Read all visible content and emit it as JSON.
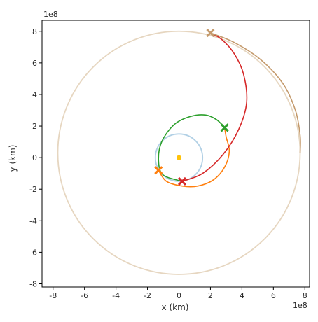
{
  "chart_data": {
    "type": "line",
    "title": "",
    "xlabel": "x (km)",
    "ylabel": "y (km)",
    "x_offset_label": "1e8",
    "y_offset_label": "1e8",
    "xlim": [
      -8.7,
      8.3
    ],
    "ylim": [
      -8.2,
      8.7
    ],
    "xticks": [
      -8,
      -6,
      -4,
      -2,
      0,
      2,
      4,
      6,
      8
    ],
    "yticks": [
      -8,
      -6,
      -4,
      -2,
      0,
      2,
      4,
      6,
      8
    ],
    "xtick_labels": [
      "-8",
      "-6",
      "-4",
      "-2",
      "0",
      "2",
      "4",
      "6",
      "8"
    ],
    "ytick_labels": [
      "-8",
      "-6",
      "-4",
      "-2",
      "0",
      "2",
      "4",
      "6",
      "8"
    ],
    "units_scale": "1e8",
    "grid": false,
    "aspect": "equal",
    "sun": {
      "x": 0,
      "y": 0,
      "color": "#ffc20a"
    },
    "orbits": [
      {
        "id": "inner-orbit",
        "cx": 0,
        "cy": 0,
        "r": 1.5,
        "color": "#1f77b4",
        "opacity": 0.35
      },
      {
        "id": "outer-orbit",
        "cx": 0,
        "cy": 0.3,
        "r": 7.7,
        "color": "#d2b48c",
        "opacity": 0.55
      }
    ],
    "series": [
      {
        "color": "#ff7f0e",
        "points": [
          [
            -1.3,
            -0.8
          ],
          [
            -0.8,
            -1.5
          ],
          [
            0.2,
            -1.8
          ],
          [
            1.2,
            -1.8
          ],
          [
            2.2,
            -1.4
          ],
          [
            2.9,
            -0.6
          ],
          [
            3.2,
            0.4
          ],
          [
            3.0,
            1.3
          ],
          [
            2.9,
            1.9
          ]
        ],
        "marker": [
          -1.3,
          -0.8
        ]
      },
      {
        "color": "#2ca02c",
        "points": [
          [
            0.2,
            -1.5
          ],
          [
            -1.0,
            -1.1
          ],
          [
            -1.3,
            -0.2
          ],
          [
            -1.1,
            1.0
          ],
          [
            -0.3,
            2.1
          ],
          [
            0.7,
            2.6
          ],
          [
            1.7,
            2.7
          ],
          [
            2.4,
            2.4
          ],
          [
            2.9,
            1.9
          ]
        ],
        "marker": [
          2.9,
          1.9
        ]
      },
      {
        "color": "#d62728",
        "points": [
          [
            0.2,
            -1.5
          ],
          [
            1.5,
            -1.0
          ],
          [
            2.8,
            0.2
          ],
          [
            3.8,
            1.8
          ],
          [
            4.3,
            3.5
          ],
          [
            4.1,
            5.3
          ],
          [
            3.5,
            6.6
          ],
          [
            2.7,
            7.5
          ],
          [
            2.0,
            7.9
          ]
        ],
        "marker": [
          0.2,
          -1.5
        ]
      },
      {
        "color": "#c49a6c",
        "points": [
          [
            2.0,
            7.9
          ],
          [
            3.5,
            7.3
          ],
          [
            5.2,
            6.2
          ],
          [
            6.6,
            4.7
          ],
          [
            7.4,
            3.0
          ],
          [
            7.7,
            1.4
          ],
          [
            7.7,
            0.3
          ]
        ],
        "marker": [
          2.0,
          7.9
        ]
      }
    ]
  }
}
